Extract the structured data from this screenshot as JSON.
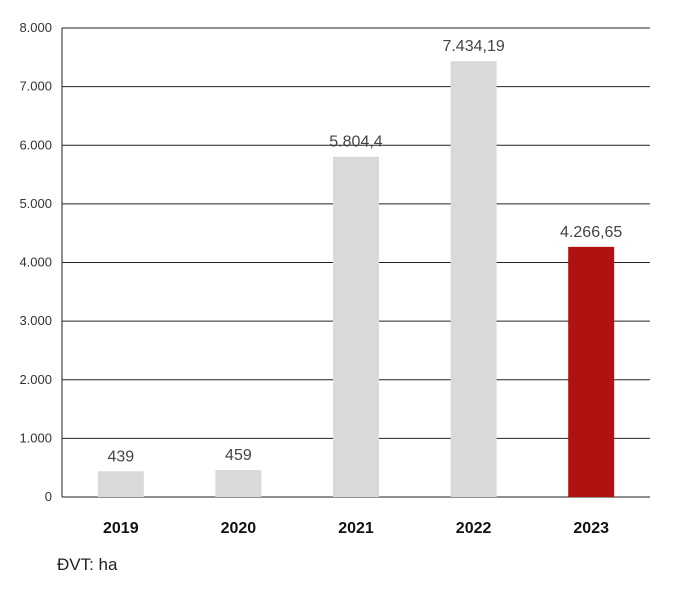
{
  "chart_data": {
    "type": "bar",
    "categories": [
      "2019",
      "2020",
      "2021",
      "2022",
      "2023"
    ],
    "values": [
      439,
      459,
      5804.4,
      7434.19,
      4266.65
    ],
    "data_labels": [
      "439",
      "459",
      "5.804,4",
      "7.434,19",
      "4.266,65"
    ],
    "ylim": [
      0,
      8000
    ],
    "yticks": [
      0,
      1000,
      2000,
      3000,
      4000,
      5000,
      6000,
      7000,
      8000
    ],
    "ytick_labels": [
      "0",
      "1.000",
      "2.000",
      "3.000",
      "4.000",
      "5.000",
      "6.000",
      "7.000",
      "8.000"
    ],
    "grid": true,
    "bar_colors": [
      "#d9d9d9",
      "#d9d9d9",
      "#d9d9d9",
      "#d9d9d9",
      "#b0120f"
    ],
    "gridline_color": "#222222"
  },
  "unit_note": "ĐVT: ha"
}
